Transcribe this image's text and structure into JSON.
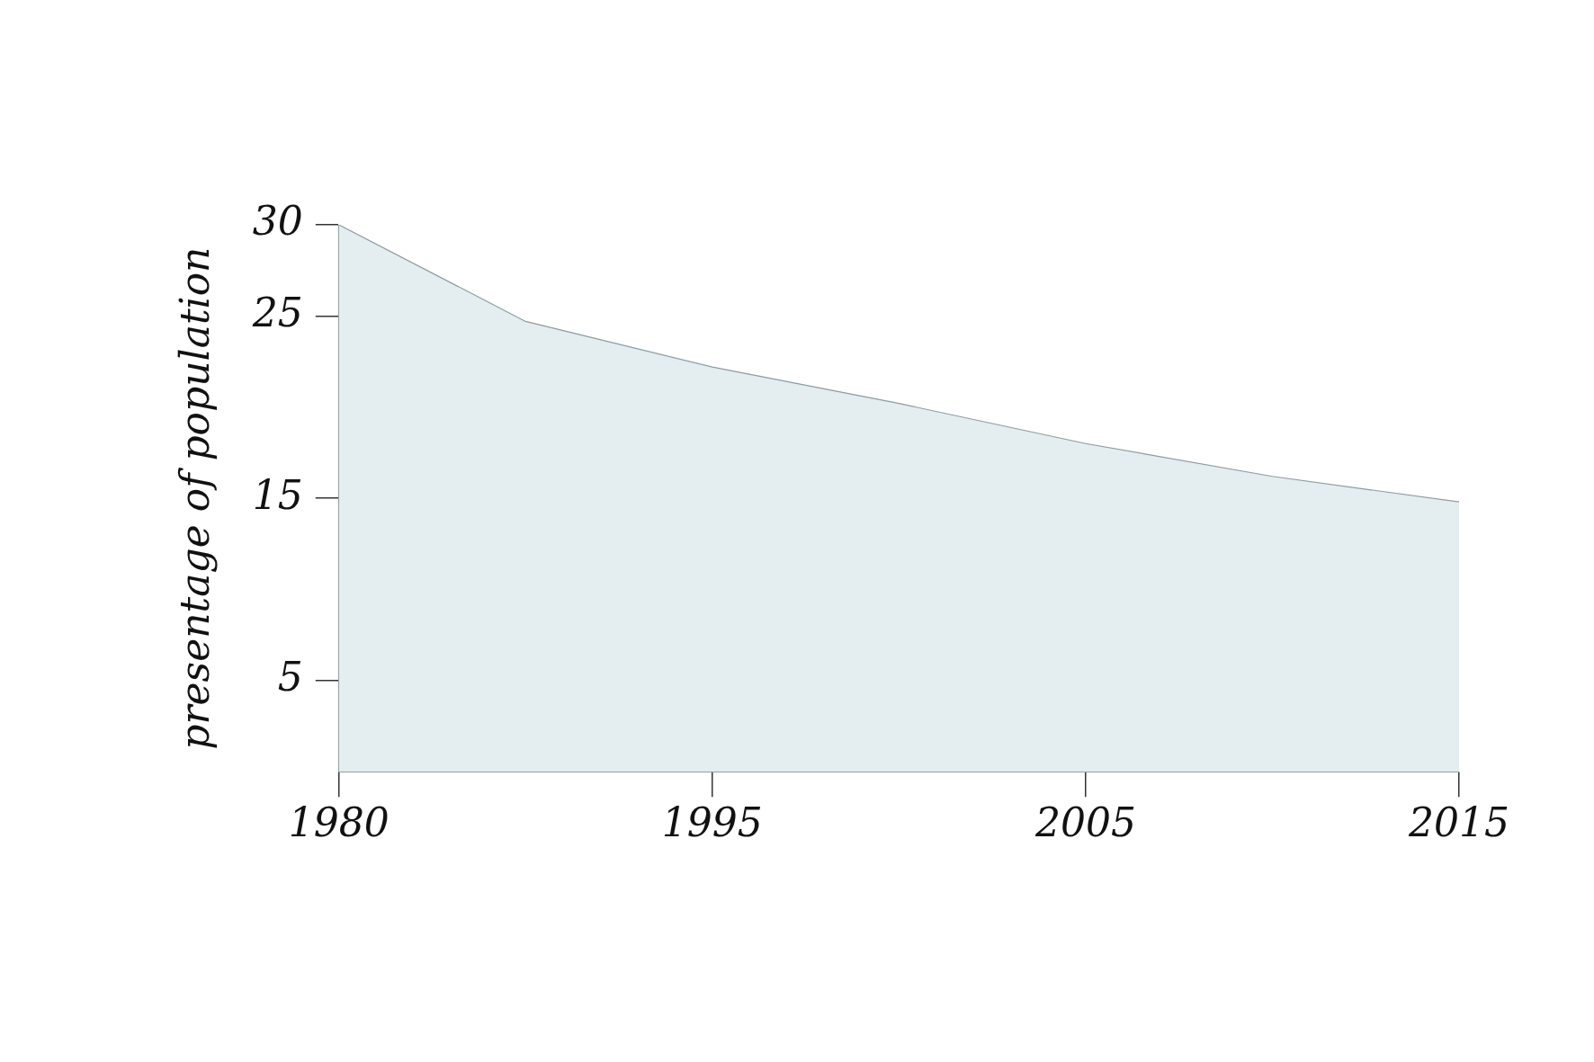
{
  "chart_data": {
    "type": "area",
    "ylabel": "presentage of population",
    "categories": [
      "1980",
      null,
      "1995",
      null,
      "2005",
      null,
      "2015"
    ],
    "series": [
      {
        "color": "#e4edf0",
        "values": [
          30,
          24.7,
          22.2,
          20.2,
          18.0,
          16.2,
          14.8
        ]
      }
    ],
    "ylim": [
      0,
      30
    ],
    "yticks": [
      5,
      15,
      25,
      30
    ],
    "grid": false,
    "legend": false
  }
}
